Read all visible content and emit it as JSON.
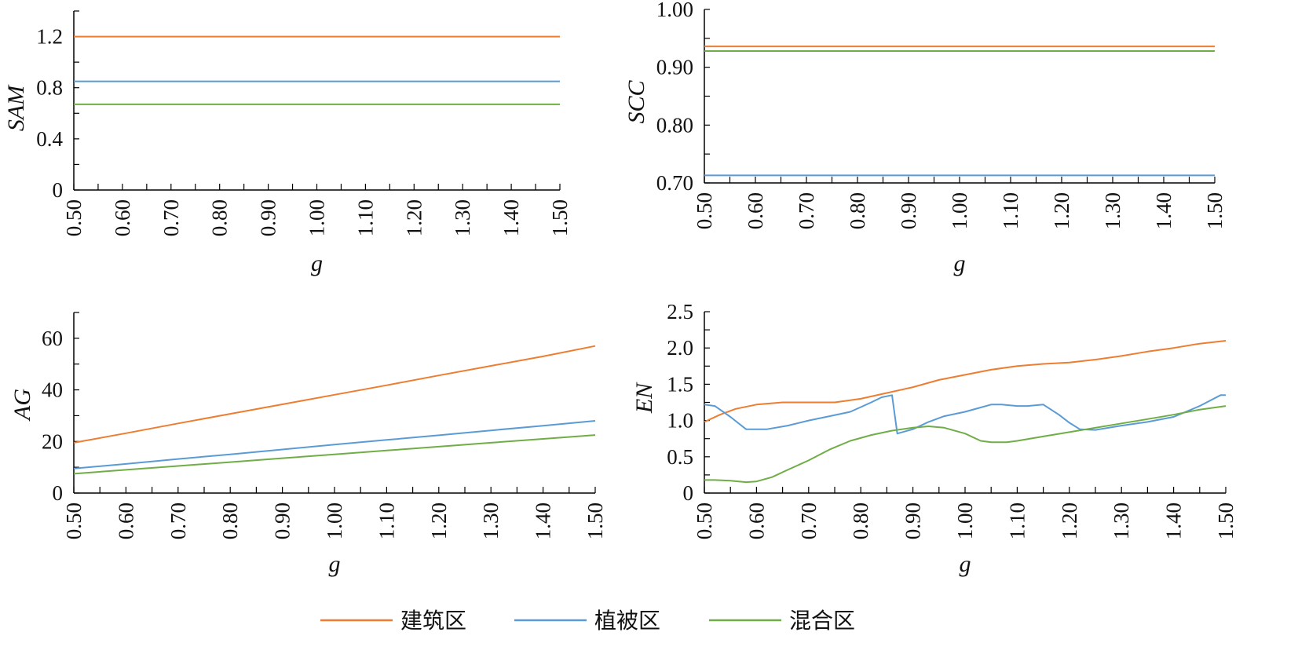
{
  "colors": {
    "series": [
      "#ED7D31",
      "#5B9BD5",
      "#70AD47"
    ],
    "axis": "#000000"
  },
  "legend": [
    "建筑区",
    "植被区",
    "混合区"
  ],
  "chart_data": [
    {
      "id": "sam",
      "type": "line",
      "ylabel": "SAM",
      "xlabel": "g",
      "xlim": [
        0.5,
        1.5
      ],
      "xticks": [
        "0.50",
        "0.60",
        "0.70",
        "0.80",
        "0.90",
        "1.00",
        "1.10",
        "1.20",
        "1.30",
        "1.40",
        "1.50"
      ],
      "ylim": [
        0,
        1.4
      ],
      "yticks": [
        "0",
        "0.4",
        "0.8",
        "1.2"
      ],
      "ytick_values": [
        0,
        0.4,
        0.8,
        1.2
      ],
      "series": [
        {
          "name": "建筑区",
          "x": [
            0.5,
            1.5
          ],
          "y": [
            1.2,
            1.2
          ]
        },
        {
          "name": "植被区",
          "x": [
            0.5,
            1.5
          ],
          "y": [
            0.85,
            0.85
          ]
        },
        {
          "name": "混合区",
          "x": [
            0.5,
            1.5
          ],
          "y": [
            0.67,
            0.67
          ]
        }
      ]
    },
    {
      "id": "scc",
      "type": "line",
      "ylabel": "SCC",
      "xlabel": "g",
      "xlim": [
        0.5,
        1.5
      ],
      "xticks": [
        "0.50",
        "0.60",
        "0.70",
        "0.80",
        "0.90",
        "1.00",
        "1.10",
        "1.20",
        "1.30",
        "1.40",
        "1.50"
      ],
      "ylim": [
        0.7,
        1.0
      ],
      "yticks": [
        "0.70",
        "0.80",
        "0.90",
        "1.00"
      ],
      "ytick_values": [
        0.7,
        0.8,
        0.9,
        1.0
      ],
      "series": [
        {
          "name": "建筑区",
          "x": [
            0.5,
            1.5
          ],
          "y": [
            0.936,
            0.936
          ]
        },
        {
          "name": "植被区",
          "x": [
            0.5,
            1.5
          ],
          "y": [
            0.713,
            0.713
          ]
        },
        {
          "name": "混合区",
          "x": [
            0.5,
            1.5
          ],
          "y": [
            0.928,
            0.928
          ]
        }
      ]
    },
    {
      "id": "ag",
      "type": "line",
      "ylabel": "AG",
      "xlabel": "g",
      "xlim": [
        0.5,
        1.5
      ],
      "xticks": [
        "0.50",
        "0.60",
        "0.70",
        "0.80",
        "0.90",
        "1.00",
        "1.10",
        "1.20",
        "1.30",
        "1.40",
        "1.50"
      ],
      "ylim": [
        0,
        70
      ],
      "yticks": [
        "0",
        "20",
        "40",
        "60"
      ],
      "ytick_values": [
        0,
        20,
        40,
        60
      ],
      "series": [
        {
          "name": "建筑区",
          "x": [
            0.5,
            0.6,
            0.7,
            0.8,
            0.9,
            1.0,
            1.1,
            1.2,
            1.3,
            1.4,
            1.5
          ],
          "y": [
            19.5,
            23.2,
            27,
            30.7,
            34.4,
            38.1,
            41.8,
            45.6,
            49.3,
            53,
            57
          ]
        },
        {
          "name": "植被区",
          "x": [
            0.5,
            0.6,
            0.7,
            0.8,
            0.9,
            1.0,
            1.1,
            1.2,
            1.3,
            1.4,
            1.5
          ],
          "y": [
            9.5,
            11.3,
            13.2,
            15,
            16.9,
            18.8,
            20.6,
            22.4,
            24.3,
            26.1,
            28
          ]
        },
        {
          "name": "混合区",
          "x": [
            0.5,
            0.6,
            0.7,
            0.8,
            0.9,
            1.0,
            1.1,
            1.2,
            1.3,
            1.4,
            1.5
          ],
          "y": [
            7.5,
            9,
            10.5,
            12,
            13.5,
            15,
            16.5,
            18,
            19.5,
            21,
            22.5
          ]
        }
      ]
    },
    {
      "id": "en",
      "type": "line",
      "ylabel": "EN",
      "xlabel": "g",
      "xlim": [
        0.5,
        1.5
      ],
      "xticks": [
        "0.50",
        "0.60",
        "0.70",
        "0.80",
        "0.90",
        "1.00",
        "1.10",
        "1.20",
        "1.30",
        "1.40",
        "1.50"
      ],
      "ylim": [
        0,
        2.5
      ],
      "yticks": [
        "0",
        "0.5",
        "1.0",
        "1.5",
        "2.0",
        "2.5"
      ],
      "ytick_values": [
        0,
        0.5,
        1.0,
        1.5,
        2.0,
        2.5
      ],
      "series": [
        {
          "name": "建筑区",
          "x": [
            0.5,
            0.53,
            0.56,
            0.6,
            0.65,
            0.7,
            0.75,
            0.8,
            0.85,
            0.9,
            0.95,
            1.0,
            1.05,
            1.1,
            1.15,
            1.2,
            1.25,
            1.3,
            1.35,
            1.4,
            1.45,
            1.5
          ],
          "y": [
            0.98,
            1.08,
            1.16,
            1.22,
            1.25,
            1.25,
            1.25,
            1.3,
            1.38,
            1.46,
            1.56,
            1.63,
            1.7,
            1.75,
            1.78,
            1.8,
            1.84,
            1.89,
            1.95,
            2.0,
            2.06,
            2.1
          ]
        },
        {
          "name": "植被区",
          "x": [
            0.5,
            0.52,
            0.55,
            0.58,
            0.62,
            0.66,
            0.7,
            0.74,
            0.78,
            0.82,
            0.84,
            0.86,
            0.87,
            0.9,
            0.93,
            0.96,
            1.0,
            1.03,
            1.05,
            1.07,
            1.1,
            1.12,
            1.15,
            1.18,
            1.2,
            1.22,
            1.25,
            1.3,
            1.35,
            1.4,
            1.45,
            1.49,
            1.5
          ],
          "y": [
            1.22,
            1.2,
            1.05,
            0.88,
            0.88,
            0.93,
            1.0,
            1.06,
            1.12,
            1.25,
            1.32,
            1.35,
            0.82,
            0.88,
            0.98,
            1.06,
            1.12,
            1.18,
            1.22,
            1.22,
            1.2,
            1.2,
            1.22,
            1.08,
            0.97,
            0.88,
            0.87,
            0.93,
            0.98,
            1.05,
            1.2,
            1.35,
            1.35
          ]
        },
        {
          "name": "混合区",
          "x": [
            0.5,
            0.52,
            0.55,
            0.58,
            0.6,
            0.63,
            0.66,
            0.7,
            0.74,
            0.78,
            0.82,
            0.86,
            0.9,
            0.93,
            0.96,
            1.0,
            1.03,
            1.05,
            1.08,
            1.1,
            1.15,
            1.2,
            1.25,
            1.3,
            1.35,
            1.4,
            1.45,
            1.5
          ],
          "y": [
            0.18,
            0.18,
            0.17,
            0.15,
            0.16,
            0.22,
            0.32,
            0.45,
            0.6,
            0.72,
            0.8,
            0.86,
            0.9,
            0.92,
            0.9,
            0.82,
            0.72,
            0.7,
            0.7,
            0.72,
            0.78,
            0.84,
            0.9,
            0.96,
            1.02,
            1.08,
            1.15,
            1.2
          ]
        }
      ]
    }
  ]
}
